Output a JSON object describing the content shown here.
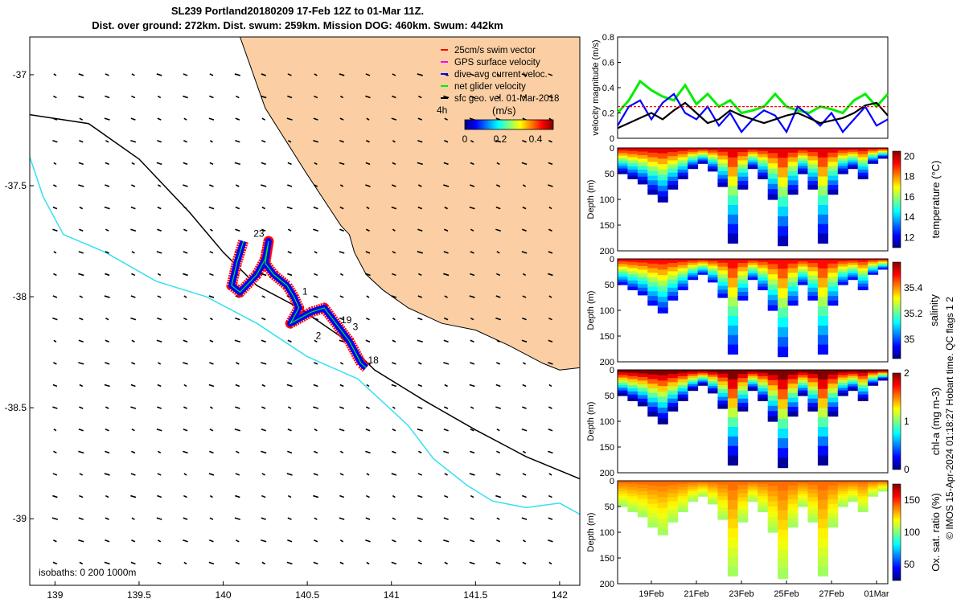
{
  "title": {
    "line1": "SL239 Portland20180209 17-Feb 12Z to 01-Mar 11Z.",
    "line2": "Dist. over ground: 272km. Dist. swum: 259km. Mission DOG: 460km. Swum: 442km"
  },
  "footer_note": "© IMOS 15-Apr-2024 01:18:27 Hobart time. QC flags 1  2",
  "colors": {
    "land": "#fbcfa3",
    "isobath_0": "#000000",
    "isobath_200": "#000000",
    "isobath_1000": "#33e0f0",
    "swim": "#ff0000",
    "gps": "#ff00ff",
    "current": "#0000ff",
    "net": "#00ee00",
    "geo": "#000000"
  },
  "chart_data": [
    {
      "type": "map",
      "name": "glider-track-map",
      "xlim": [
        138.85,
        142.12
      ],
      "ylim": [
        -39.3,
        -36.83
      ],
      "xticks": [
        139,
        139.5,
        140,
        140.5,
        141,
        141.5,
        142
      ],
      "xtick_labels": [
        "139",
        "139.5",
        "140",
        "140.5",
        "141",
        "141.5",
        "142"
      ],
      "yticks": [
        -37,
        -37.5,
        -38,
        -38.5,
        -39
      ],
      "ytick_labels": [
        "-37",
        "-37.5",
        "-38",
        "-38.5",
        "-39"
      ],
      "legend": {
        "position": "top-right",
        "entries": [
          {
            "label": "25cm/s swim vector",
            "color": "#ff0000"
          },
          {
            "label": "GPS surface velocity",
            "color": "#ff00ff"
          },
          {
            "label": "dive-avg current veloc.",
            "color": "#0000ff"
          },
          {
            "label": "net glider velocity",
            "color": "#00ee00"
          },
          {
            "label": "sfc geo. vel. 01-Mar-2018",
            "color": "#000000"
          }
        ]
      },
      "colorbar": {
        "title": "(m/s)",
        "side_label": "4h",
        "ticks": [
          0,
          0.2,
          0.4
        ],
        "tick_labels": [
          "0",
          "0.2",
          "0.4"
        ],
        "range": [
          0,
          0.5
        ]
      },
      "isobath_label": "isobaths: 0   200  1000m",
      "coastline": [
        [
          140.1,
          -36.83
        ],
        [
          140.25,
          -37.15
        ],
        [
          140.5,
          -37.45
        ],
        [
          140.7,
          -37.68
        ],
        [
          140.75,
          -37.72
        ],
        [
          140.78,
          -37.8
        ],
        [
          140.85,
          -37.9
        ],
        [
          140.95,
          -37.97
        ],
        [
          141.1,
          -38.05
        ],
        [
          141.3,
          -38.12
        ],
        [
          141.5,
          -38.15
        ],
        [
          141.7,
          -38.22
        ],
        [
          141.9,
          -38.3
        ],
        [
          142.0,
          -38.33
        ],
        [
          142.12,
          -38.32
        ]
      ],
      "isobath_200m": [
        [
          138.85,
          -37.18
        ],
        [
          139.2,
          -37.22
        ],
        [
          139.5,
          -37.38
        ],
        [
          139.8,
          -37.62
        ],
        [
          140.0,
          -37.8
        ],
        [
          140.2,
          -37.95
        ],
        [
          140.45,
          -38.05
        ],
        [
          140.7,
          -38.18
        ],
        [
          140.9,
          -38.33
        ],
        [
          141.2,
          -38.47
        ],
        [
          141.5,
          -38.6
        ],
        [
          141.8,
          -38.72
        ],
        [
          142.12,
          -38.82
        ]
      ],
      "isobath_1000m": [
        [
          138.85,
          -37.37
        ],
        [
          138.93,
          -37.55
        ],
        [
          139.05,
          -37.72
        ],
        [
          139.3,
          -37.8
        ],
        [
          139.6,
          -37.93
        ],
        [
          139.9,
          -38.0
        ],
        [
          140.2,
          -38.12
        ],
        [
          140.5,
          -38.27
        ],
        [
          140.8,
          -38.37
        ],
        [
          141.1,
          -38.58
        ],
        [
          141.25,
          -38.73
        ],
        [
          141.45,
          -38.85
        ],
        [
          141.6,
          -38.92
        ],
        [
          141.8,
          -38.95
        ],
        [
          142.0,
          -38.93
        ],
        [
          142.12,
          -38.98
        ]
      ],
      "track_points": [
        [
          140.12,
          -37.75
        ],
        [
          140.08,
          -37.85
        ],
        [
          140.05,
          -37.95
        ],
        [
          140.1,
          -37.98
        ],
        [
          140.2,
          -37.9
        ],
        [
          140.25,
          -37.83
        ],
        [
          140.27,
          -37.75
        ],
        [
          140.25,
          -37.85
        ],
        [
          140.3,
          -37.9
        ],
        [
          140.38,
          -37.95
        ],
        [
          140.42,
          -38.0
        ],
        [
          140.45,
          -38.05
        ],
        [
          140.4,
          -38.12
        ],
        [
          140.52,
          -38.07
        ],
        [
          140.6,
          -38.05
        ],
        [
          140.67,
          -38.12
        ],
        [
          140.75,
          -38.2
        ],
        [
          140.82,
          -38.3
        ],
        [
          140.85,
          -38.32
        ]
      ],
      "track_labels": [
        {
          "text": "23",
          "lon": 140.18,
          "lat": -37.73
        },
        {
          "text": "1",
          "lon": 140.47,
          "lat": -37.99
        },
        {
          "text": "19",
          "lon": 140.7,
          "lat": -38.12
        },
        {
          "text": "3",
          "lon": 140.77,
          "lat": -38.15
        },
        {
          "text": "2",
          "lon": 140.55,
          "lat": -38.19
        },
        {
          "text": "18",
          "lon": 140.86,
          "lat": -38.3
        }
      ]
    },
    {
      "type": "line",
      "name": "velocity-magnitude",
      "ylabel": "velocity magnitude (m/s)",
      "ylim": [
        0,
        0.8
      ],
      "yticks": [
        0,
        0.2,
        0.4,
        0.6,
        0.8
      ],
      "ytick_labels": [
        "0",
        "0.2",
        "0.4",
        "0.6",
        "0.8"
      ],
      "x_days": [
        0,
        0.5,
        1,
        1.5,
        2,
        2.5,
        3,
        3.5,
        4,
        4.5,
        5,
        5.5,
        6,
        6.5,
        7,
        7.5,
        8,
        8.5,
        9,
        9.5,
        10,
        10.5,
        11,
        11.5,
        12
      ],
      "series": [
        {
          "name": "net glider velocity",
          "color": "#00ee00",
          "values": [
            0.2,
            0.3,
            0.45,
            0.38,
            0.33,
            0.3,
            0.42,
            0.27,
            0.35,
            0.25,
            0.3,
            0.2,
            0.22,
            0.25,
            0.35,
            0.25,
            0.22,
            0.2,
            0.25,
            0.23,
            0.2,
            0.3,
            0.35,
            0.25,
            0.35
          ]
        },
        {
          "name": "dive-avg current veloc.",
          "color": "#0000ff",
          "values": [
            0.1,
            0.25,
            0.3,
            0.15,
            0.28,
            0.35,
            0.2,
            0.15,
            0.25,
            0.1,
            0.2,
            0.05,
            0.15,
            0.22,
            0.18,
            0.05,
            0.25,
            0.18,
            0.1,
            0.2,
            0.05,
            0.15,
            0.25,
            0.1,
            0.15
          ]
        },
        {
          "name": "sfc geo. vel.",
          "color": "#000000",
          "values": [
            0.08,
            0.12,
            0.16,
            0.2,
            0.15,
            0.22,
            0.28,
            0.2,
            0.12,
            0.15,
            0.22,
            0.18,
            0.15,
            0.12,
            0.15,
            0.18,
            0.2,
            0.16,
            0.12,
            0.14,
            0.16,
            0.2,
            0.26,
            0.28,
            0.18
          ]
        },
        {
          "name": "25cm/s swim vector",
          "color": "#ff0000",
          "dashed": true,
          "values": [
            0.25,
            0.25,
            0.25,
            0.25,
            0.25,
            0.25,
            0.25,
            0.25,
            0.25,
            0.25,
            0.25,
            0.25,
            0.25,
            0.25,
            0.25,
            0.25,
            0.25,
            0.25,
            0.25,
            0.25,
            0.25,
            0.25,
            0.25,
            0.25,
            0.25
          ]
        }
      ]
    },
    {
      "type": "heatmap",
      "name": "temperature-section",
      "ylabel": "Depth (m)",
      "cbar_label": "temperature (°C)",
      "cbar_range": [
        11,
        20.5
      ],
      "cbar_ticks": [
        12,
        14,
        16,
        18,
        20
      ],
      "cbar_tick_labels": [
        "12",
        "14",
        "16",
        "18",
        "20"
      ],
      "depth_ticks": [
        0,
        50,
        100,
        150,
        200
      ],
      "depth_tick_labels": [
        "0",
        "50",
        "100",
        "150",
        "200"
      ],
      "dive_max_depth_m": [
        50,
        60,
        70,
        90,
        105,
        80,
        60,
        40,
        30,
        45,
        75,
        185,
        80,
        40,
        60,
        100,
        190,
        90,
        50,
        80,
        185,
        90,
        50,
        40,
        60,
        30,
        20
      ],
      "surface_value": 19.5,
      "deep_value": 11.5
    },
    {
      "type": "heatmap",
      "name": "salinity-section",
      "ylabel": "Depth (m)",
      "cbar_label": "salinity",
      "cbar_range": [
        34.85,
        35.6
      ],
      "cbar_ticks": [
        35,
        35.2,
        35.4
      ],
      "cbar_tick_labels": [
        "35",
        "35.2",
        "35.4"
      ],
      "depth_ticks": [
        0,
        50,
        100,
        150,
        200
      ],
      "depth_tick_labels": [
        "0",
        "50",
        "100",
        "150",
        "200"
      ],
      "surface_value": 35.5,
      "deep_value": 34.95
    },
    {
      "type": "heatmap",
      "name": "chla-section",
      "ylabel": "Depth (m)",
      "cbar_label": "chl-a (mg m-3)",
      "cbar_range": [
        0,
        2
      ],
      "cbar_ticks": [
        0,
        1,
        2
      ],
      "cbar_tick_labels": [
        "0",
        "1",
        "2"
      ],
      "depth_ticks": [
        0,
        50,
        100,
        150,
        200
      ],
      "depth_tick_labels": [
        "0",
        "50",
        "100",
        "150",
        "200"
      ],
      "surface_value": 2,
      "deep_value": 0.05
    },
    {
      "type": "heatmap",
      "name": "oxygen-section",
      "ylabel": "Depth (m)",
      "cbar_label": "Ox. sat. ratio (%)",
      "cbar_range": [
        25,
        175
      ],
      "cbar_ticks": [
        50,
        100,
        150
      ],
      "cbar_tick_labels": [
        "50",
        "100",
        "150"
      ],
      "depth_ticks": [
        0,
        50,
        100,
        150,
        200
      ],
      "depth_tick_labels": [
        "0",
        "50",
        "100",
        "150",
        "200"
      ],
      "xticks_days": [
        1.5,
        3.5,
        5.5,
        7.5,
        9.5,
        11.5
      ],
      "xtick_labels": [
        "19Feb",
        "21Feb",
        "23Feb",
        "25Feb",
        "27Feb",
        "01Mar"
      ],
      "surface_value": 140,
      "deep_value": 105
    }
  ]
}
